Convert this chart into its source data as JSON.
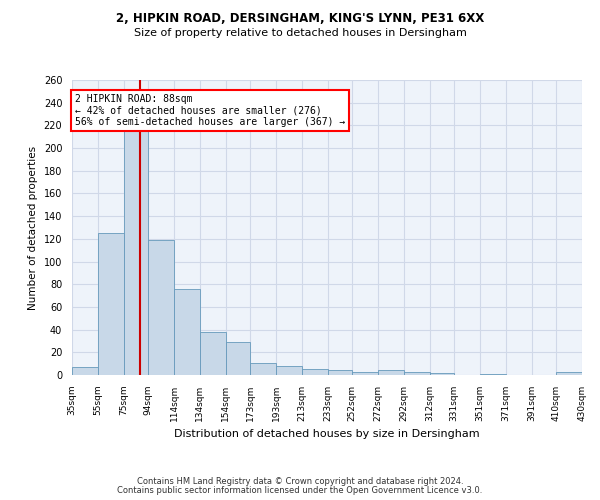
{
  "title1": "2, HIPKIN ROAD, DERSINGHAM, KING'S LYNN, PE31 6XX",
  "title2": "Size of property relative to detached houses in Dersingham",
  "xlabel": "Distribution of detached houses by size in Dersingham",
  "ylabel": "Number of detached properties",
  "footnote1": "Contains HM Land Registry data © Crown copyright and database right 2024.",
  "footnote2": "Contains public sector information licensed under the Open Government Licence v3.0.",
  "annotation_line1": "2 HIPKIN ROAD: 88sqm",
  "annotation_line2": "← 42% of detached houses are smaller (276)",
  "annotation_line3": "56% of semi-detached houses are larger (367) →",
  "property_size": 88,
  "bar_color": "#c8d8e8",
  "bar_edge_color": "#6699bb",
  "red_line_color": "#cc0000",
  "grid_color": "#d0d8e8",
  "background_color": "#eef3fa",
  "bins": [
    35,
    55,
    75,
    94,
    114,
    134,
    154,
    173,
    193,
    213,
    233,
    252,
    272,
    292,
    312,
    331,
    351,
    371,
    391,
    410,
    430
  ],
  "bin_labels": [
    "35sqm",
    "55sqm",
    "75sqm",
    "94sqm",
    "114sqm",
    "134sqm",
    "154sqm",
    "173sqm",
    "193sqm",
    "213sqm",
    "233sqm",
    "252sqm",
    "272sqm",
    "292sqm",
    "312sqm",
    "331sqm",
    "351sqm",
    "371sqm",
    "391sqm",
    "410sqm",
    "430sqm"
  ],
  "counts": [
    7,
    125,
    218,
    119,
    76,
    38,
    29,
    11,
    8,
    5,
    4,
    3,
    4,
    3,
    2,
    0,
    1,
    0,
    0,
    3
  ],
  "ylim": [
    0,
    260
  ],
  "yticks": [
    0,
    20,
    40,
    60,
    80,
    100,
    120,
    140,
    160,
    180,
    200,
    220,
    240,
    260
  ]
}
